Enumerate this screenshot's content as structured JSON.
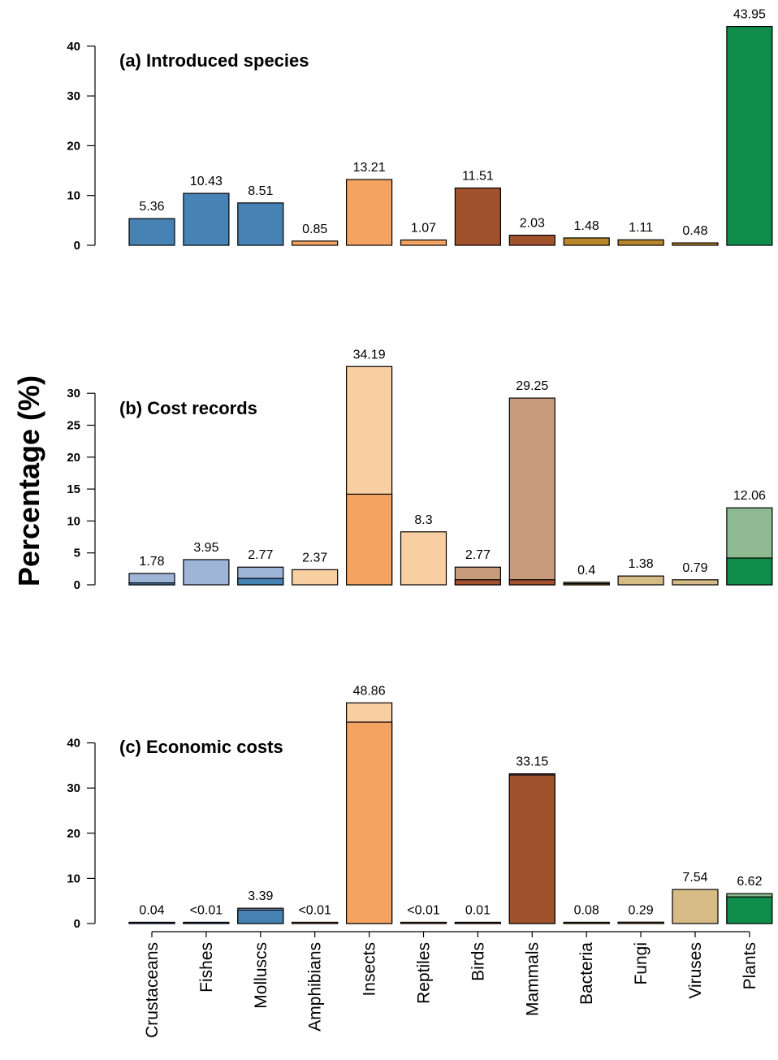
{
  "ylabel": "Percentage (%)",
  "categories": [
    "Crustaceans",
    "Fishes",
    "Molluscs",
    "Amphibians",
    "Insects",
    "Reptiles",
    "Birds",
    "Mammals",
    "Bacteria",
    "Fungi",
    "Viruses",
    "Plants"
  ],
  "chart_data": [
    {
      "type": "bar",
      "title": "(a) Introduced species",
      "categories": [
        "Crustaceans",
        "Fishes",
        "Molluscs",
        "Amphibians",
        "Insects",
        "Reptiles",
        "Birds",
        "Mammals",
        "Bacteria",
        "Fungi",
        "Viruses",
        "Plants"
      ],
      "values": [
        5.36,
        10.43,
        8.51,
        0.85,
        13.21,
        1.07,
        11.51,
        2.03,
        1.48,
        1.11,
        0.48,
        43.95
      ],
      "value_labels": [
        "5.36",
        "10.43",
        "8.51",
        "0.85",
        "13.21",
        "1.07",
        "11.51",
        "2.03",
        "1.48",
        "1.11",
        "0.48",
        "43.95"
      ],
      "colors": [
        "#4682b4",
        "#4682b4",
        "#4682b4",
        "#f4a460",
        "#f4a460",
        "#f4a460",
        "#a0522d",
        "#a0522d",
        "#b8862b",
        "#b8862b",
        "#b8862b",
        "#0f8c4a"
      ],
      "yticks": [
        0,
        10,
        20,
        30,
        40
      ],
      "ylim": [
        0,
        40
      ]
    },
    {
      "type": "bar",
      "stacked": true,
      "title": "(b) Cost records",
      "categories": [
        "Crustaceans",
        "Fishes",
        "Molluscs",
        "Amphibians",
        "Insects",
        "Reptiles",
        "Birds",
        "Mammals",
        "Bacteria",
        "Fungi",
        "Viruses",
        "Plants"
      ],
      "values": [
        1.78,
        3.95,
        2.77,
        2.37,
        34.19,
        8.3,
        2.77,
        29.25,
        0.4,
        1.38,
        0.79,
        12.06
      ],
      "inner_values": [
        0.3,
        0,
        1.0,
        0,
        14.2,
        0,
        0.8,
        0.8,
        0.15,
        0,
        0,
        4.2
      ],
      "value_labels": [
        "1.78",
        "3.95",
        "2.77",
        "2.37",
        "34.19",
        "8.3",
        "2.77",
        "29.25",
        "0.4",
        "1.38",
        "0.79",
        "12.06"
      ],
      "colors_outer": [
        "#9fb5d8",
        "#9fb5d8",
        "#9fb5d8",
        "#f8cea3",
        "#f8cea3",
        "#f8cea3",
        "#c89b7d",
        "#c89b7d",
        "#d7bb86",
        "#d7bb86",
        "#d7bb86",
        "#8fba92"
      ],
      "colors_inner": [
        "#4682b4",
        "#4682b4",
        "#4682b4",
        "#f4a460",
        "#f4a460",
        "#f4a460",
        "#a0522d",
        "#a0522d",
        "#b8862b",
        "#b8862b",
        "#b8862b",
        "#0f8c4a"
      ],
      "yticks": [
        0,
        5,
        10,
        15,
        20,
        25,
        30
      ],
      "ylim": [
        0,
        30
      ]
    },
    {
      "type": "bar",
      "stacked": true,
      "title": "(c) Economic costs",
      "categories": [
        "Crustaceans",
        "Fishes",
        "Molluscs",
        "Amphibians",
        "Insects",
        "Reptiles",
        "Birds",
        "Mammals",
        "Bacteria",
        "Fungi",
        "Viruses",
        "Plants"
      ],
      "values": [
        0.04,
        0.005,
        3.39,
        0.005,
        48.86,
        0.005,
        0.01,
        33.15,
        0.08,
        0.29,
        7.54,
        6.62
      ],
      "inner_values": [
        0.04,
        0.005,
        3.0,
        0.005,
        44.6,
        0.005,
        0.01,
        32.9,
        0.08,
        0.29,
        0,
        5.9
      ],
      "value_labels": [
        "0.04",
        "<0.01",
        "3.39",
        "<0.01",
        "48.86",
        "<0.01",
        "0.01",
        "33.15",
        "0.08",
        "0.29",
        "7.54",
        "6.62"
      ],
      "colors_outer": [
        "#9fb5d8",
        "#9fb5d8",
        "#9fb5d8",
        "#f8cea3",
        "#f8cea3",
        "#f8cea3",
        "#c89b7d",
        "#c89b7d",
        "#d7bb86",
        "#d7bb86",
        "#d7bb86",
        "#8fba92"
      ],
      "colors_inner": [
        "#4682b4",
        "#4682b4",
        "#4682b4",
        "#f4a460",
        "#f4a460",
        "#f4a460",
        "#a0522d",
        "#a0522d",
        "#b8862b",
        "#b8862b",
        "#d7bb86",
        "#0f8c4a"
      ],
      "yticks": [
        0,
        10,
        20,
        30,
        40
      ],
      "ylim": [
        0,
        40
      ]
    }
  ]
}
